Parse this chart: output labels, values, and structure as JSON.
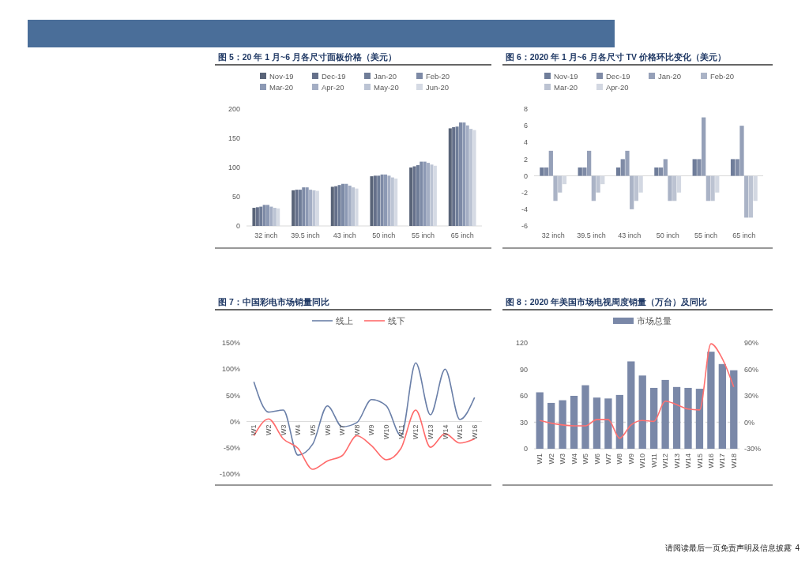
{
  "chart_data": [
    {
      "type": "bar",
      "title": "图 5：20 年 1 月~6 月各尺寸面板价格（美元）",
      "categories": [
        "32 inch",
        "39.5 inch",
        "43 inch",
        "50 inch",
        "55 inch",
        "65 inch"
      ],
      "series": [
        {
          "name": "Nov-19",
          "color": "#596478",
          "values": [
            31,
            61,
            67,
            85,
            100,
            167
          ]
        },
        {
          "name": "Dec-19",
          "color": "#65708a",
          "values": [
            32,
            62,
            68,
            86,
            102,
            169
          ]
        },
        {
          "name": "Jan-20",
          "color": "#6f7d98",
          "values": [
            33,
            62,
            70,
            86,
            104,
            170
          ]
        },
        {
          "name": "Feb-20",
          "color": "#7d8aa6",
          "values": [
            36,
            66,
            72,
            88,
            110,
            177
          ]
        },
        {
          "name": "Mar-20",
          "color": "#8c99b4",
          "values": [
            36,
            66,
            72,
            88,
            110,
            177
          ]
        },
        {
          "name": "Apr-20",
          "color": "#a4aec4",
          "values": [
            33,
            62,
            69,
            86,
            108,
            172
          ]
        },
        {
          "name": "May-20",
          "color": "#bcc4d4",
          "values": [
            31,
            61,
            66,
            83,
            105,
            166
          ]
        },
        {
          "name": "Jun-20",
          "color": "#d5dae4",
          "values": [
            30,
            60,
            64,
            81,
            103,
            164
          ]
        }
      ],
      "ylim": [
        0,
        200
      ],
      "yticks": [
        0,
        50,
        100,
        150,
        200
      ],
      "legend": "top"
    },
    {
      "type": "bar",
      "title": "图 6：2020 年 1 月~6 月各尺寸 TV 价格环比变化（美元）",
      "categories": [
        "32 inch",
        "39.5 inch",
        "43 inch",
        "50 inch",
        "55 inch",
        "65 inch"
      ],
      "series": [
        {
          "name": "Nov-19",
          "color": "#6f7d9a",
          "values": [
            1,
            1,
            1,
            1,
            2,
            2
          ]
        },
        {
          "name": "Dec-19",
          "color": "#7f8ba6",
          "values": [
            1,
            1,
            2,
            1,
            2,
            2
          ]
        },
        {
          "name": "Jan-20",
          "color": "#95a0b8",
          "values": [
            3,
            3,
            3,
            2,
            7,
            6
          ]
        },
        {
          "name": "Feb-20",
          "color": "#aab3c6",
          "values": [
            -3,
            -3,
            -4,
            -3,
            -3,
            -5
          ]
        },
        {
          "name": "Mar-20",
          "color": "#bcc3d2",
          "values": [
            -2,
            -2,
            -3,
            -3,
            -3,
            -5
          ]
        },
        {
          "name": "Apr-20",
          "color": "#d3d8e2",
          "values": [
            -1,
            -1,
            -2,
            -2,
            -2,
            -3
          ]
        }
      ],
      "ylim": [
        -6,
        8
      ],
      "yticks": [
        -6,
        -4,
        -2,
        0,
        2,
        4,
        6,
        8
      ],
      "legend": "top"
    },
    {
      "type": "line",
      "title": "图 7：中国彩电市场销量同比",
      "categories": [
        "W1",
        "W2",
        "W3",
        "W4",
        "W5",
        "W6",
        "W7",
        "W8",
        "W9",
        "W10",
        "W11",
        "W12",
        "W13",
        "W14",
        "W15",
        "W16"
      ],
      "series": [
        {
          "name": "线上",
          "color": "#6a7fa8",
          "values": [
            76,
            18,
            22,
            -64,
            -43,
            30,
            -10,
            -2,
            42,
            30,
            -27,
            112,
            13,
            100,
            4,
            46
          ]
        },
        {
          "name": "线下",
          "color": "#ff6b6b",
          "values": [
            -27,
            5,
            -33,
            -51,
            -91,
            -75,
            -65,
            -27,
            -46,
            -73,
            -51,
            22,
            -49,
            -23,
            -41,
            -33
          ]
        }
      ],
      "ylim": [
        -100,
        150
      ],
      "yticks": [
        {
          "value": -100,
          "label": "-100%"
        },
        {
          "value": -50,
          "label": "-50%"
        },
        {
          "value": 0,
          "label": "0%"
        },
        {
          "value": 50,
          "label": "50%"
        },
        {
          "value": 100,
          "label": "100%"
        },
        {
          "value": 150,
          "label": "150%"
        }
      ],
      "legend": "top",
      "marker": "none"
    },
    {
      "type": "bar",
      "title": "图 8：2020 年美国市场电视周度销量（万台）及同比",
      "categories": [
        "W1",
        "W2",
        "W3",
        "W4",
        "W5",
        "W6",
        "W7",
        "W8",
        "W9",
        "W10",
        "W11",
        "W12",
        "W13",
        "W14",
        "W15",
        "W16",
        "W17",
        "W18"
      ],
      "series": [
        {
          "name": "市场总量",
          "color": "#7a88a8",
          "values": [
            64,
            52,
            55,
            60,
            72,
            58,
            57,
            61,
            99,
            83,
            69,
            78,
            70,
            69,
            68,
            110,
            96,
            89
          ]
        },
        {
          "type": "line",
          "axis": "y2",
          "color": "#ff7070",
          "values": [
            2,
            -1,
            -3,
            -4,
            -4,
            3,
            3,
            -18,
            -3,
            2,
            1,
            24,
            20,
            15,
            14,
            89,
            72,
            40
          ]
        }
      ],
      "ylim": [
        0,
        120
      ],
      "yticks": [
        0,
        30,
        60,
        90,
        120
      ],
      "y2lim": [
        -30,
        90
      ],
      "y2ticks": [
        {
          "value": -30,
          "label": "-30%"
        },
        {
          "value": 0,
          "label": "0%"
        },
        {
          "value": 30,
          "label": "30%"
        },
        {
          "value": 60,
          "label": "60%"
        },
        {
          "value": 90,
          "label": "90%"
        }
      ],
      "ref_lines": [
        {
          "axis": "y2",
          "value": 0,
          "color": "#d9d9d9",
          "line_style": "dashed"
        }
      ],
      "legend": "top",
      "annotations": [
        "请阅读最后一页免责声明及信息披露",
        "4"
      ]
    }
  ]
}
